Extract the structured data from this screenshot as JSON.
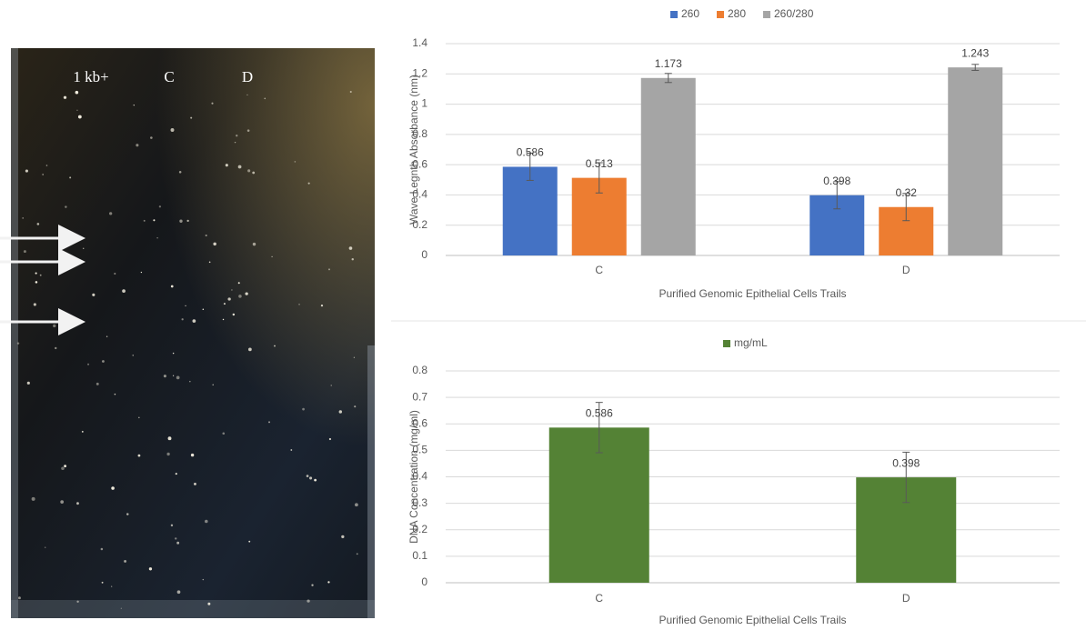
{
  "gel": {
    "labels": [
      "1 kb+",
      "C",
      "D"
    ]
  },
  "chart_data": [
    {
      "type": "bar",
      "x_label": "Purified Genomic Epithelial Cells Trails",
      "y_label": "Wave Legnth Absorbance (nm)",
      "categories": [
        "C",
        "D"
      ],
      "series": [
        {
          "name": "260",
          "color": "#4472c4",
          "values": [
            0.586,
            0.398
          ],
          "errors": [
            0.09,
            0.09
          ]
        },
        {
          "name": "280",
          "color": "#ed7d31",
          "values": [
            0.513,
            0.32
          ],
          "errors": [
            0.1,
            0.09
          ]
        },
        {
          "name": "260/280",
          "color": "#a5a5a5",
          "values": [
            1.173,
            1.243
          ],
          "errors": [
            0.03,
            0.02
          ]
        }
      ],
      "ylim": [
        0,
        1.4
      ],
      "yticks": [
        0,
        0.2,
        0.4,
        0.6,
        0.8,
        1,
        1.2,
        1.4
      ],
      "grid": true,
      "legend": "top"
    },
    {
      "type": "bar",
      "x_label": "Purified Genomic Epithelial Cells Trails",
      "y_label": "DNA Concentration (mg/ml)",
      "categories": [
        "C",
        "D"
      ],
      "series": [
        {
          "name": "mg/mL",
          "color": "#548235",
          "values": [
            0.586,
            0.398
          ],
          "errors": [
            0.095,
            0.095
          ]
        }
      ],
      "ylim": [
        0,
        0.8
      ],
      "yticks": [
        0,
        0.1,
        0.2,
        0.3,
        0.4,
        0.5,
        0.6,
        0.7,
        0.8
      ],
      "grid": true,
      "legend": "top"
    }
  ]
}
